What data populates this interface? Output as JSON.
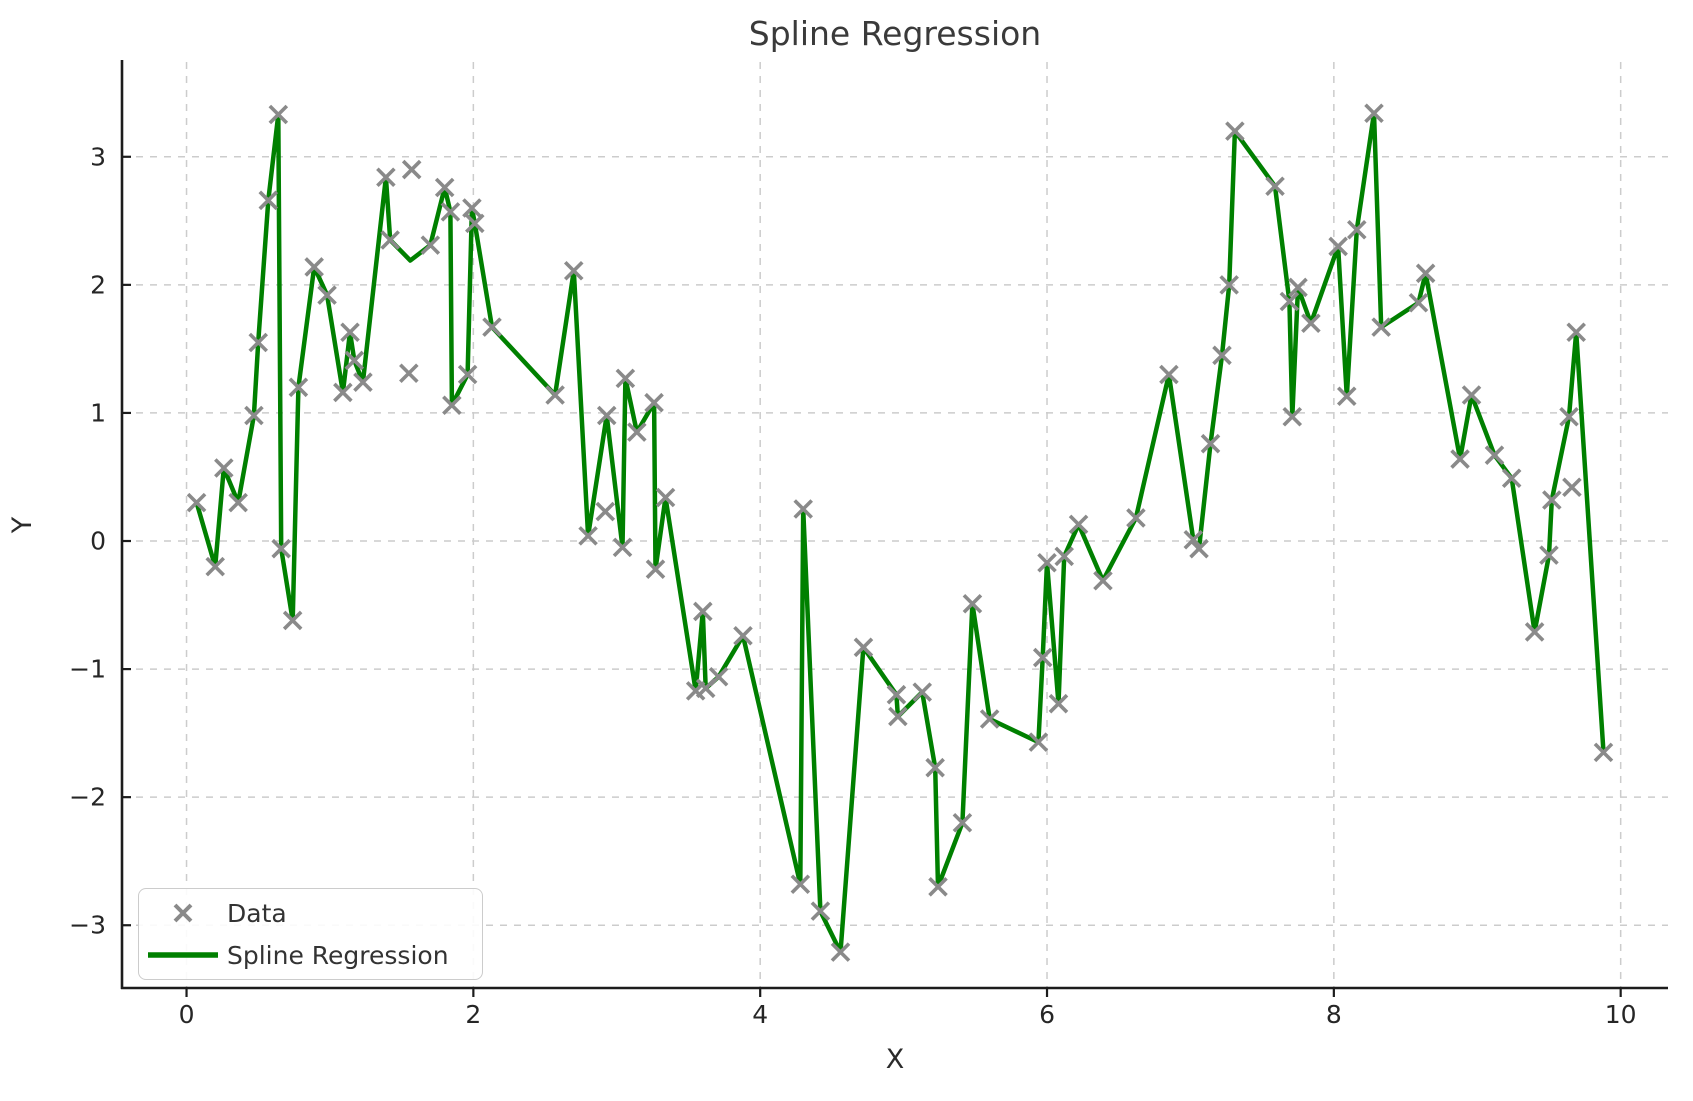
{
  "chart_data": {
    "type": "scatter",
    "title": "Spline Regression",
    "xlabel": "X",
    "ylabel": "Y",
    "xlim": [
      -0.45,
      10.33
    ],
    "ylim": [
      -3.49,
      3.74
    ],
    "xticks": [
      0,
      2,
      4,
      6,
      8,
      10
    ],
    "yticks": [
      -3,
      -2,
      -1,
      0,
      1,
      2,
      3
    ],
    "grid": "dashed",
    "background": "#ffffff",
    "grid_color": "#cccccc",
    "spine_color": "#1c1c1c",
    "legend_position": "lower left",
    "series": [
      {
        "name": "Data",
        "type": "scatter",
        "marker": "x",
        "color": "#8a8a8a",
        "points": [
          [
            0.07,
            0.3
          ],
          [
            0.2,
            -0.2
          ],
          [
            0.26,
            0.57
          ],
          [
            0.36,
            0.3
          ],
          [
            0.47,
            0.98
          ],
          [
            0.5,
            1.55
          ],
          [
            0.57,
            2.66
          ],
          [
            0.64,
            3.33
          ],
          [
            0.66,
            -0.06
          ],
          [
            0.74,
            -0.62
          ],
          [
            0.78,
            1.2
          ],
          [
            0.89,
            2.14
          ],
          [
            0.98,
            1.92
          ],
          [
            1.09,
            1.16
          ],
          [
            1.14,
            1.63
          ],
          [
            1.17,
            1.41
          ],
          [
            1.23,
            1.24
          ],
          [
            1.39,
            2.84
          ],
          [
            1.42,
            2.35
          ],
          [
            1.55,
            1.31
          ],
          [
            1.57,
            2.9
          ],
          [
            1.7,
            2.31
          ],
          [
            1.8,
            2.76
          ],
          [
            1.84,
            2.57
          ],
          [
            1.85,
            1.06
          ],
          [
            1.96,
            1.3
          ],
          [
            1.99,
            2.6
          ],
          [
            2.01,
            2.48
          ],
          [
            2.13,
            1.67
          ],
          [
            2.57,
            1.14
          ],
          [
            2.7,
            2.11
          ],
          [
            2.8,
            0.04
          ],
          [
            2.92,
            0.23
          ],
          [
            2.93,
            0.98
          ],
          [
            3.04,
            -0.05
          ],
          [
            3.06,
            1.27
          ],
          [
            3.14,
            0.85
          ],
          [
            3.26,
            1.08
          ],
          [
            3.27,
            -0.22
          ],
          [
            3.34,
            0.34
          ],
          [
            3.55,
            -1.17
          ],
          [
            3.6,
            -0.55
          ],
          [
            3.62,
            -1.15
          ],
          [
            3.71,
            -1.06
          ],
          [
            3.88,
            -0.74
          ],
          [
            4.28,
            -2.68
          ],
          [
            4.3,
            0.25
          ],
          [
            4.42,
            -2.89
          ],
          [
            4.56,
            -3.21
          ],
          [
            4.72,
            -0.83
          ],
          [
            4.95,
            -1.2
          ],
          [
            4.96,
            -1.37
          ],
          [
            5.13,
            -1.18
          ],
          [
            5.22,
            -1.77
          ],
          [
            5.24,
            -2.7
          ],
          [
            5.41,
            -2.2
          ],
          [
            5.48,
            -0.49
          ],
          [
            5.6,
            -1.39
          ],
          [
            5.94,
            -1.57
          ],
          [
            5.97,
            -0.91
          ],
          [
            6.0,
            -0.17
          ],
          [
            6.08,
            -1.27
          ],
          [
            6.12,
            -0.12
          ],
          [
            6.22,
            0.13
          ],
          [
            6.39,
            -0.31
          ],
          [
            6.62,
            0.18
          ],
          [
            6.85,
            1.3
          ],
          [
            7.02,
            0.01
          ],
          [
            7.06,
            -0.06
          ],
          [
            7.14,
            0.76
          ],
          [
            7.22,
            1.45
          ],
          [
            7.27,
            2.0
          ],
          [
            7.31,
            3.2
          ],
          [
            7.59,
            2.77
          ],
          [
            7.69,
            1.87
          ],
          [
            7.71,
            0.97
          ],
          [
            7.75,
            1.98
          ],
          [
            7.84,
            1.7
          ],
          [
            8.03,
            2.3
          ],
          [
            8.09,
            1.13
          ],
          [
            8.16,
            2.43
          ],
          [
            8.28,
            3.34
          ],
          [
            8.33,
            1.67
          ],
          [
            8.59,
            1.86
          ],
          [
            8.64,
            2.09
          ],
          [
            8.88,
            0.64
          ],
          [
            8.96,
            1.14
          ],
          [
            9.12,
            0.67
          ],
          [
            9.24,
            0.49
          ],
          [
            9.4,
            -0.71
          ],
          [
            9.5,
            -0.11
          ],
          [
            9.52,
            0.32
          ],
          [
            9.64,
            0.97
          ],
          [
            9.66,
            0.42
          ],
          [
            9.69,
            1.63
          ],
          [
            9.88,
            -1.65
          ]
        ]
      },
      {
        "name": "Spline Regression",
        "type": "line",
        "color": "#008000",
        "linewidth": 4.5,
        "points": [
          [
            0.07,
            0.3
          ],
          [
            0.2,
            -0.2
          ],
          [
            0.26,
            0.57
          ],
          [
            0.36,
            0.3
          ],
          [
            0.47,
            0.98
          ],
          [
            0.5,
            1.55
          ],
          [
            0.57,
            2.66
          ],
          [
            0.64,
            3.33
          ],
          [
            0.66,
            -0.06
          ],
          [
            0.74,
            -0.62
          ],
          [
            0.78,
            1.2
          ],
          [
            0.89,
            2.14
          ],
          [
            0.98,
            1.92
          ],
          [
            1.09,
            1.16
          ],
          [
            1.14,
            1.63
          ],
          [
            1.17,
            1.41
          ],
          [
            1.23,
            1.24
          ],
          [
            1.39,
            2.84
          ],
          [
            1.42,
            2.35
          ],
          [
            1.56,
            2.19
          ],
          [
            1.7,
            2.31
          ],
          [
            1.8,
            2.76
          ],
          [
            1.84,
            2.57
          ],
          [
            1.85,
            1.06
          ],
          [
            1.96,
            1.3
          ],
          [
            1.99,
            2.6
          ],
          [
            2.01,
            2.48
          ],
          [
            2.13,
            1.67
          ],
          [
            2.57,
            1.14
          ],
          [
            2.7,
            2.11
          ],
          [
            2.8,
            0.04
          ],
          [
            2.93,
            0.98
          ],
          [
            3.04,
            -0.05
          ],
          [
            3.06,
            1.27
          ],
          [
            3.14,
            0.85
          ],
          [
            3.26,
            1.08
          ],
          [
            3.27,
            -0.22
          ],
          [
            3.34,
            0.34
          ],
          [
            3.55,
            -1.17
          ],
          [
            3.6,
            -0.55
          ],
          [
            3.62,
            -1.15
          ],
          [
            3.71,
            -1.06
          ],
          [
            3.88,
            -0.74
          ],
          [
            4.28,
            -2.68
          ],
          [
            4.3,
            0.25
          ],
          [
            4.42,
            -2.89
          ],
          [
            4.56,
            -3.21
          ],
          [
            4.72,
            -0.83
          ],
          [
            4.95,
            -1.2
          ],
          [
            4.96,
            -1.37
          ],
          [
            5.13,
            -1.18
          ],
          [
            5.22,
            -1.77
          ],
          [
            5.24,
            -2.7
          ],
          [
            5.41,
            -2.2
          ],
          [
            5.48,
            -0.49
          ],
          [
            5.6,
            -1.39
          ],
          [
            5.94,
            -1.57
          ],
          [
            5.97,
            -0.91
          ],
          [
            6.0,
            -0.17
          ],
          [
            6.08,
            -1.27
          ],
          [
            6.12,
            -0.12
          ],
          [
            6.22,
            0.13
          ],
          [
            6.39,
            -0.31
          ],
          [
            6.62,
            0.18
          ],
          [
            6.85,
            1.3
          ],
          [
            7.02,
            0.01
          ],
          [
            7.06,
            -0.06
          ],
          [
            7.14,
            0.76
          ],
          [
            7.22,
            1.45
          ],
          [
            7.27,
            2.0
          ],
          [
            7.31,
            3.2
          ],
          [
            7.59,
            2.77
          ],
          [
            7.69,
            1.87
          ],
          [
            7.71,
            0.97
          ],
          [
            7.75,
            1.98
          ],
          [
            7.84,
            1.7
          ],
          [
            8.03,
            2.3
          ],
          [
            8.09,
            1.13
          ],
          [
            8.16,
            2.43
          ],
          [
            8.28,
            3.34
          ],
          [
            8.33,
            1.67
          ],
          [
            8.59,
            1.86
          ],
          [
            8.64,
            2.09
          ],
          [
            8.88,
            0.64
          ],
          [
            8.96,
            1.14
          ],
          [
            9.12,
            0.67
          ],
          [
            9.24,
            0.49
          ],
          [
            9.4,
            -0.71
          ],
          [
            9.5,
            -0.11
          ],
          [
            9.52,
            0.32
          ],
          [
            9.64,
            0.97
          ],
          [
            9.69,
            1.63
          ],
          [
            9.88,
            -1.65
          ]
        ]
      }
    ],
    "legend": {
      "items": [
        {
          "label": "Data",
          "marker": "x",
          "color": "#8a8a8a"
        },
        {
          "label": "Spline Regression",
          "marker": "line",
          "color": "#008000"
        }
      ]
    }
  }
}
